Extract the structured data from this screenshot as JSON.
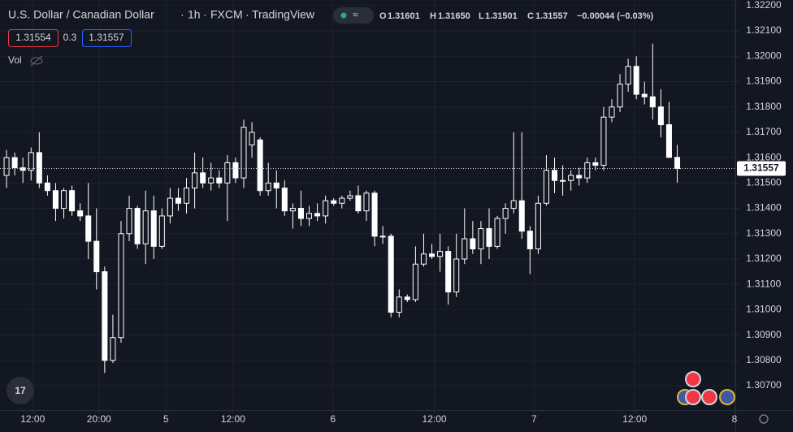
{
  "header": {
    "symbol": "U.S. Dollar / Canadian Dollar",
    "interval": "1h",
    "exchange": "FXCM",
    "source": "TradingView",
    "open_label": "O",
    "open": "1.31601",
    "high_label": "H",
    "high": "1.31650",
    "low_label": "L",
    "low": "1.31501",
    "close_label": "C",
    "close": "1.31557",
    "change": "−0.00044 (−0.03%)",
    "bid": "1.31554",
    "spread": "0.3",
    "ask": "1.31557",
    "volume_label": "Vol"
  },
  "chart_data": {
    "type": "candlestick",
    "up_color": "#131722",
    "down_color": "#ffffff",
    "border_color": "#ffffff",
    "grid": true,
    "last_price": {
      "value": 1.31557,
      "label": "1.31557"
    },
    "open": [
      1.3153,
      1.316,
      1.3156,
      1.3155,
      1.3162,
      1.315,
      1.3147,
      1.314,
      1.3147,
      1.3139,
      1.3137,
      1.3127,
      1.3115,
      1.308,
      1.3089,
      1.313,
      1.314,
      1.3126,
      1.3139,
      1.3125,
      1.3137,
      1.3144,
      1.3142,
      1.3148,
      1.3154,
      1.315,
      1.3152,
      1.315,
      1.3158,
      1.3152,
      1.3165,
      1.3167,
      1.3147,
      1.315,
      1.3148,
      1.3139,
      1.314,
      1.3136,
      1.3138,
      1.3137,
      1.3143,
      1.3142,
      1.3144,
      1.3145,
      1.3139,
      1.3146,
      1.3129,
      1.3129,
      1.3099,
      1.3105,
      1.3104,
      1.3118,
      1.3122,
      1.3121,
      1.3123,
      1.3107,
      1.312,
      1.3128,
      1.3124,
      1.3132,
      1.3125,
      1.3136,
      1.314,
      1.3143,
      1.3131,
      1.3124,
      1.3142,
      1.3155,
      1.3151,
      1.3151,
      1.3153,
      1.3152,
      1.3158,
      1.3157,
      1.3176,
      1.318,
      1.3189,
      1.3196,
      1.3185,
      1.3184,
      1.318,
      1.3173,
      1.31601
    ],
    "high": [
      1.3163,
      1.3162,
      1.316,
      1.3164,
      1.317,
      1.3153,
      1.315,
      1.3148,
      1.3149,
      1.3142,
      1.315,
      1.314,
      1.3117,
      1.3098,
      1.3135,
      1.3145,
      1.3141,
      1.3147,
      1.3145,
      1.314,
      1.3148,
      1.3148,
      1.3152,
      1.3162,
      1.316,
      1.3158,
      1.3155,
      1.3161,
      1.316,
      1.3175,
      1.3174,
      1.3168,
      1.3158,
      1.3155,
      1.3151,
      1.3142,
      1.3147,
      1.3141,
      1.3142,
      1.3145,
      1.3144,
      1.3145,
      1.3147,
      1.3149,
      1.3147,
      1.3147,
      1.3133,
      1.313,
      1.3108,
      1.3106,
      1.3125,
      1.313,
      1.3126,
      1.313,
      1.3125,
      1.313,
      1.314,
      1.3135,
      1.3135,
      1.314,
      1.3137,
      1.3142,
      1.317,
      1.317,
      1.3133,
      1.3145,
      1.3161,
      1.316,
      1.3157,
      1.3155,
      1.3156,
      1.316,
      1.316,
      1.318,
      1.3183,
      1.3193,
      1.3199,
      1.32,
      1.319,
      1.3205,
      1.3187,
      1.3182,
      1.3165
    ],
    "low": [
      1.3148,
      1.3153,
      1.315,
      1.3151,
      1.3148,
      1.3145,
      1.3135,
      1.3136,
      1.3137,
      1.3135,
      1.312,
      1.3108,
      1.3075,
      1.3079,
      1.3087,
      1.3127,
      1.3124,
      1.3118,
      1.312,
      1.3124,
      1.3134,
      1.3139,
      1.3138,
      1.314,
      1.3148,
      1.3147,
      1.3148,
      1.3135,
      1.315,
      1.3148,
      1.316,
      1.3145,
      1.3145,
      1.314,
      1.3137,
      1.3132,
      1.3133,
      1.3133,
      1.3135,
      1.3134,
      1.3141,
      1.314,
      1.3143,
      1.3138,
      1.3135,
      1.3125,
      1.3126,
      1.3097,
      1.3097,
      1.3103,
      1.3103,
      1.3117,
      1.312,
      1.3115,
      1.3102,
      1.3105,
      1.3118,
      1.3122,
      1.3118,
      1.312,
      1.3124,
      1.313,
      1.3138,
      1.3128,
      1.3114,
      1.3122,
      1.3141,
      1.3146,
      1.3145,
      1.3147,
      1.3149,
      1.315,
      1.3155,
      1.3155,
      1.3174,
      1.3178,
      1.3186,
      1.3183,
      1.3181,
      1.3175,
      1.3168,
      1.316,
      1.31501
    ],
    "close": [
      1.316,
      1.3156,
      1.3155,
      1.3162,
      1.315,
      1.3147,
      1.314,
      1.3147,
      1.3139,
      1.3137,
      1.3127,
      1.3115,
      1.308,
      1.3089,
      1.313,
      1.314,
      1.3126,
      1.3139,
      1.3125,
      1.3137,
      1.3144,
      1.3142,
      1.3148,
      1.3154,
      1.315,
      1.3152,
      1.315,
      1.3158,
      1.3152,
      1.3172,
      1.317,
      1.3147,
      1.315,
      1.3148,
      1.3139,
      1.314,
      1.3136,
      1.3138,
      1.3137,
      1.3143,
      1.3142,
      1.3144,
      1.3145,
      1.3139,
      1.3146,
      1.3129,
      1.3129,
      1.3099,
      1.3105,
      1.3104,
      1.3118,
      1.3122,
      1.3121,
      1.3123,
      1.3107,
      1.312,
      1.3128,
      1.3124,
      1.3132,
      1.3125,
      1.3136,
      1.314,
      1.3143,
      1.3131,
      1.3124,
      1.3142,
      1.3155,
      1.3151,
      1.3151,
      1.3153,
      1.3152,
      1.3158,
      1.3157,
      1.3176,
      1.318,
      1.3189,
      1.3196,
      1.3185,
      1.3184,
      1.318,
      1.3173,
      1.31601,
      1.31557
    ],
    "xlim": [
      -0.8,
      89.1
    ],
    "xticks": [
      {
        "value": 3.2,
        "label": "12:00"
      },
      {
        "value": 11.3,
        "label": "20:00"
      },
      {
        "value": 19.5,
        "label": "5"
      },
      {
        "value": 27.7,
        "label": "12:00"
      },
      {
        "value": 39.9,
        "label": "6"
      },
      {
        "value": 52.3,
        "label": "12:00"
      },
      {
        "value": 64.5,
        "label": "7"
      },
      {
        "value": 76.8,
        "label": "12:00"
      },
      {
        "value": 89,
        "label": "8"
      }
    ],
    "ylim": [
      1.30604,
      1.32222
    ],
    "yticks": [
      {
        "value": 1.322,
        "label": "1.32200"
      },
      {
        "value": 1.321,
        "label": "1.32100"
      },
      {
        "value": 1.32,
        "label": "1.32000"
      },
      {
        "value": 1.319,
        "label": "1.31900"
      },
      {
        "value": 1.318,
        "label": "1.31800"
      },
      {
        "value": 1.317,
        "label": "1.31700"
      },
      {
        "value": 1.316,
        "label": "1.31600"
      },
      {
        "value": 1.315,
        "label": "1.31500"
      },
      {
        "value": 1.314,
        "label": "1.31400"
      },
      {
        "value": 1.313,
        "label": "1.31300"
      },
      {
        "value": 1.312,
        "label": "1.31200"
      },
      {
        "value": 1.311,
        "label": "1.31100"
      },
      {
        "value": 1.31,
        "label": "1.31000"
      },
      {
        "value": 1.309,
        "label": "1.30900"
      },
      {
        "value": 1.308,
        "label": "1.30800"
      },
      {
        "value": 1.307,
        "label": "1.30700"
      }
    ]
  }
}
